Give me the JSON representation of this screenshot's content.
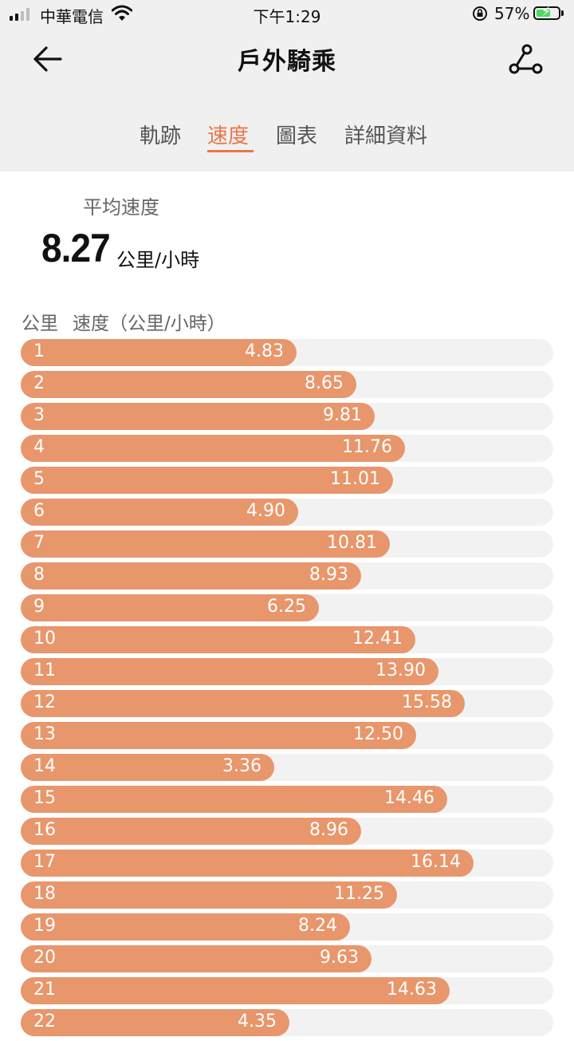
{
  "status_bar": {
    "carrier": "中華電信",
    "time": "下午1:29",
    "battery_percent": "57%",
    "battery_level": 0.57,
    "icons": [
      "signal-icon",
      "wifi-icon",
      "rotation-lock-icon",
      "battery-charging-icon"
    ]
  },
  "nav": {
    "title": "戶外騎乘",
    "back_icon": "arrow-left-icon",
    "route_icon": "route-icon"
  },
  "tabs": [
    {
      "label": "軌跡",
      "active": false
    },
    {
      "label": "速度",
      "active": true
    },
    {
      "label": "圖表",
      "active": false
    },
    {
      "label": "詳細資料",
      "active": false
    }
  ],
  "colors": {
    "accent": "#e8774a",
    "bar": "#e8966b",
    "track": "#f2f2f2",
    "header_bg": "#f0f0f0"
  },
  "summary": {
    "label": "平均速度",
    "value": "8.27",
    "unit": "公里/小時"
  },
  "list": {
    "col_km": "公里",
    "col_speed": "速度（公里/小時）",
    "rows": [
      {
        "km": "1",
        "speed": "4.83"
      },
      {
        "km": "2",
        "speed": "8.65"
      },
      {
        "km": "3",
        "speed": "9.81"
      },
      {
        "km": "4",
        "speed": "11.76"
      },
      {
        "km": "5",
        "speed": "11.01"
      },
      {
        "km": "6",
        "speed": "4.90"
      },
      {
        "km": "7",
        "speed": "10.81"
      },
      {
        "km": "8",
        "speed": "8.93"
      },
      {
        "km": "9",
        "speed": "6.25"
      },
      {
        "km": "10",
        "speed": "12.41"
      },
      {
        "km": "11",
        "speed": "13.90"
      },
      {
        "km": "12",
        "speed": "15.58"
      },
      {
        "km": "13",
        "speed": "12.50"
      },
      {
        "km": "14",
        "speed": "3.36"
      },
      {
        "km": "15",
        "speed": "14.46"
      },
      {
        "km": "16",
        "speed": "8.96"
      },
      {
        "km": "17",
        "speed": "16.14"
      },
      {
        "km": "18",
        "speed": "11.25"
      },
      {
        "km": "19",
        "speed": "8.24"
      },
      {
        "km": "20",
        "speed": "9.63"
      },
      {
        "km": "21",
        "speed": "14.63"
      },
      {
        "km": "22",
        "speed": "4.35"
      }
    ]
  }
}
